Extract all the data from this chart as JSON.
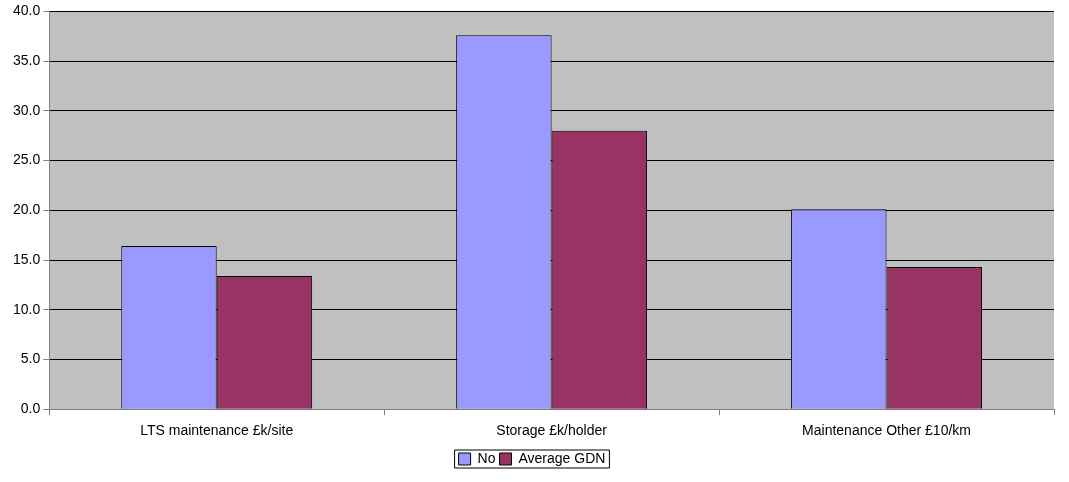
{
  "chart_data": {
    "type": "bar",
    "categories": [
      "LTS maintenance £k/site",
      "Storage £k/holder",
      "Maintenance Other £10/km"
    ],
    "series": [
      {
        "name": "No",
        "color": "#9999ff",
        "values": [
          16.4,
          37.6,
          20.1
        ]
      },
      {
        "name": "Average GDN",
        "color": "#993366",
        "values": [
          13.4,
          28.0,
          14.3
        ]
      }
    ],
    "ylim": [
      0,
      40
    ],
    "yticks": [
      {
        "value": 0,
        "label": "0.0"
      },
      {
        "value": 5,
        "label": "5.0"
      },
      {
        "value": 10,
        "label": "10.0"
      },
      {
        "value": 15,
        "label": "15.0"
      },
      {
        "value": 20,
        "label": "20.0"
      },
      {
        "value": 25,
        "label": "25.0"
      },
      {
        "value": 30,
        "label": "30.0"
      },
      {
        "value": 35,
        "label": "35.0"
      },
      {
        "value": 40,
        "label": "40.0"
      }
    ],
    "grid": "y",
    "legend": "bottom"
  }
}
